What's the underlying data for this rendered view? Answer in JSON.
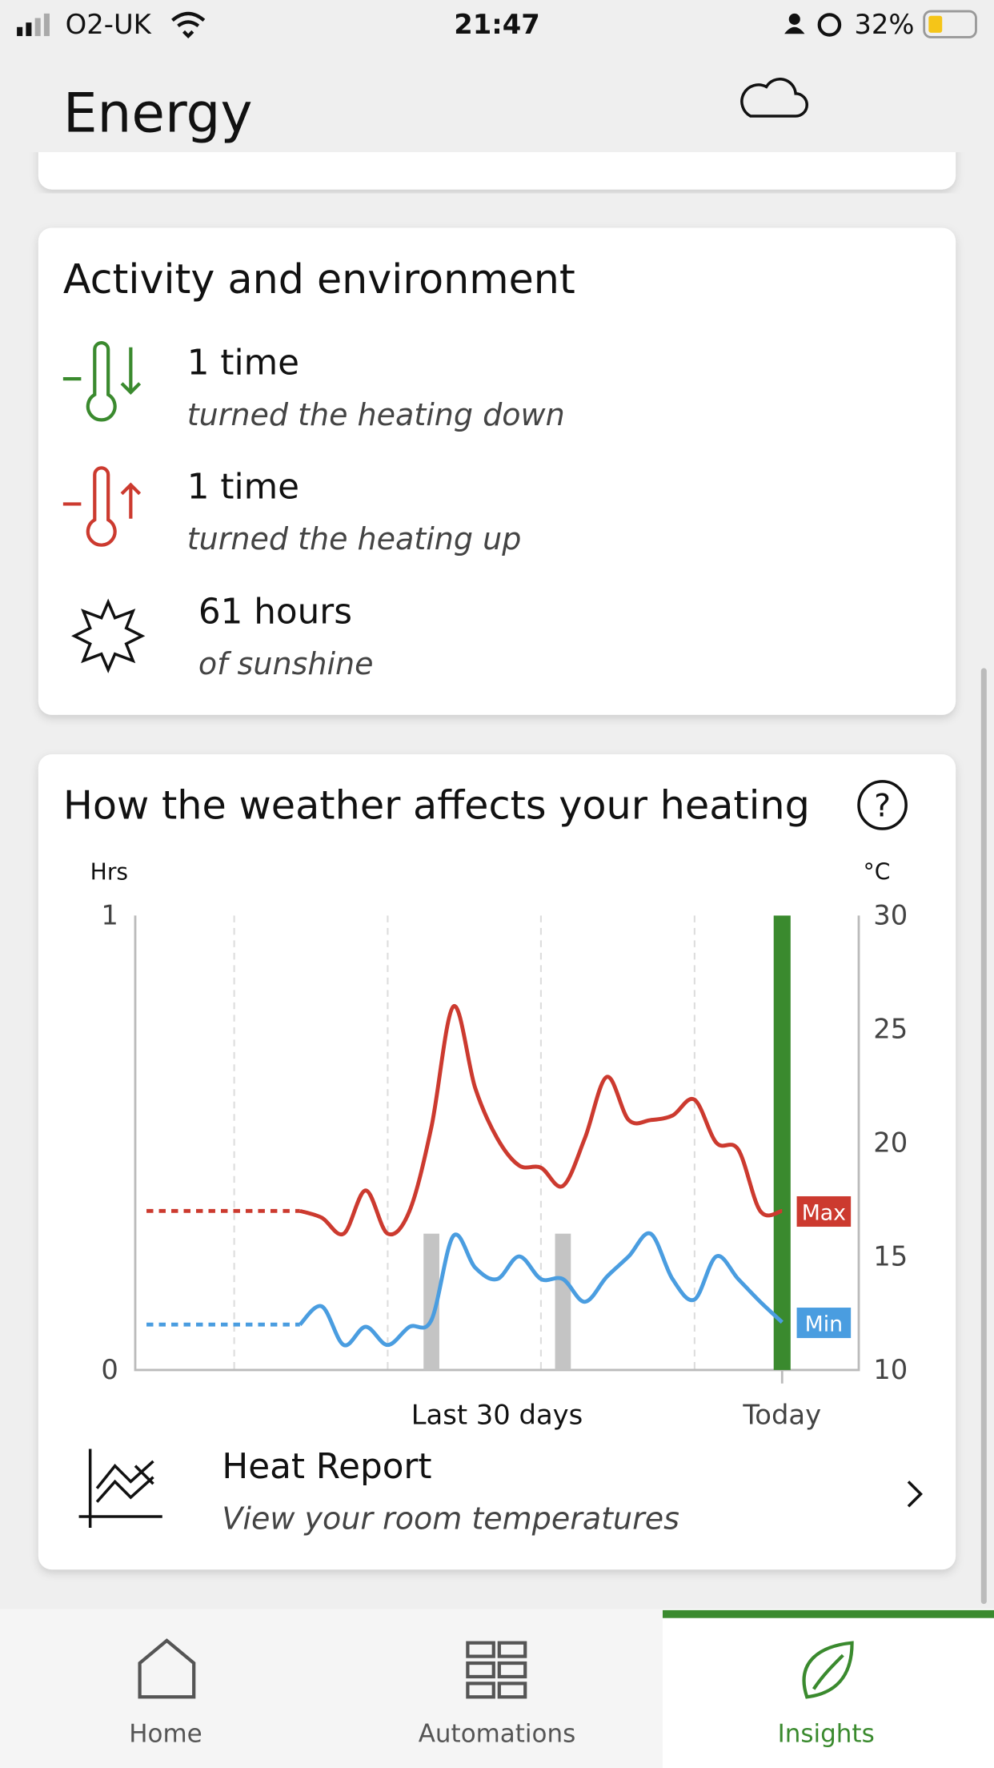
{
  "status_bar": {
    "carrier": "O2-UK",
    "time": "21:47",
    "battery": "32%"
  },
  "header": {
    "title": "Energy"
  },
  "activity": {
    "title": "Activity and environment",
    "items": [
      {
        "value": "1 time",
        "description": "turned the heating down"
      },
      {
        "value": "1 time",
        "description": "turned the heating up"
      },
      {
        "value": "61 hours",
        "description": "of sunshine"
      }
    ]
  },
  "weather": {
    "title": "How the weather affects your heating",
    "help": "?"
  },
  "chart_data": {
    "type": "line",
    "y_label": "Hrs",
    "y2_label": "°C",
    "x_label": "Last 30 days",
    "categories": [
      null,
      null,
      null,
      null,
      null,
      null,
      null,
      null,
      null,
      null,
      null,
      null,
      null,
      null,
      null,
      null,
      null,
      null,
      null,
      null,
      null,
      null,
      null,
      null,
      null,
      null,
      null,
      null,
      null,
      "Today"
    ],
    "ylim": [
      0,
      1
    ],
    "yticks": [
      0,
      1
    ],
    "y2lim": [
      10,
      30
    ],
    "y2ticks": [
      10,
      15,
      20,
      25,
      30
    ],
    "hours": {
      "values": [
        null,
        null,
        null,
        null,
        null,
        null,
        null,
        null,
        null,
        null,
        null,
        null,
        null,
        0.3,
        null,
        null,
        null,
        null,
        null,
        0.3,
        null,
        null,
        null,
        null,
        null,
        null,
        null,
        null,
        null,
        1
      ],
      "colors": [
        null,
        null,
        null,
        null,
        null,
        null,
        null,
        null,
        null,
        null,
        null,
        null,
        null,
        "#c4c4c4",
        null,
        null,
        null,
        null,
        null,
        "#c4c4c4",
        null,
        null,
        null,
        null,
        null,
        null,
        null,
        null,
        null,
        "#3a8a2e"
      ]
    },
    "dashed_to": 7,
    "series": [
      {
        "name": "Max",
        "color": "#cc3a2f",
        "axis": "y2",
        "values": [
          17,
          17,
          17,
          17,
          17,
          17,
          17,
          17,
          16.7,
          16,
          17.9,
          16,
          17,
          20.7,
          26,
          22.4,
          20.2,
          19,
          18.9,
          18.1,
          20.2,
          22.9,
          21,
          21,
          21.2,
          21.9,
          20,
          19.7,
          17,
          17
        ]
      },
      {
        "name": "Min",
        "color": "#4a9de0",
        "axis": "y2",
        "values": [
          12,
          12,
          12,
          12,
          12,
          12,
          12,
          12,
          12.8,
          11.1,
          11.9,
          11.1,
          11.9,
          12.2,
          15.9,
          14.5,
          14,
          15,
          14,
          14,
          13,
          14.1,
          15,
          16,
          14,
          13.1,
          15,
          14,
          13,
          12.1
        ]
      }
    ]
  },
  "report": {
    "title": "Heat Report",
    "subtitle": "View your room temperatures"
  },
  "nav": {
    "items": [
      "Home",
      "Automations",
      "Insights"
    ]
  }
}
